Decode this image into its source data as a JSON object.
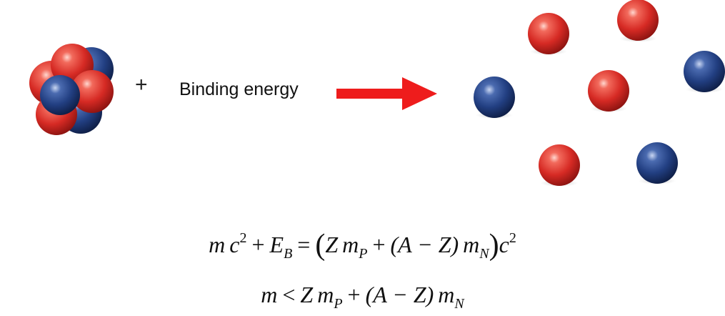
{
  "diagram": {
    "plus_sign": "+",
    "binding_label": "Binding energy",
    "colors": {
      "proton": "#d9302c",
      "neutron": "#1f3f7a",
      "arrow": "#ee1c1c"
    },
    "nucleus": {
      "proton_count": 4,
      "neutron_count": 4
    },
    "free_nucleons": [
      "neutron",
      "proton",
      "proton",
      "neutron",
      "proton",
      "proton",
      "neutron"
    ]
  },
  "equations": {
    "eq1": {
      "m": "m",
      "c": "c",
      "exp2a": "2",
      "plus1": "+",
      "E": "E",
      "subB": "B",
      "equals": "=",
      "lparen": "(",
      "Z": "Z",
      "m2": "m",
      "subP": "P",
      "plus2": "+",
      "inner": "(A − Z)",
      "m3": "m",
      "subN": "N",
      "rparen": ")",
      "c2": "c",
      "exp2b": "2"
    },
    "eq2": {
      "m": "m",
      "lt": "<",
      "Z": "Z",
      "m2": "m",
      "subP": "P",
      "plus": "+",
      "inner": "(A − Z)",
      "m3": "m",
      "subN": "N"
    }
  }
}
